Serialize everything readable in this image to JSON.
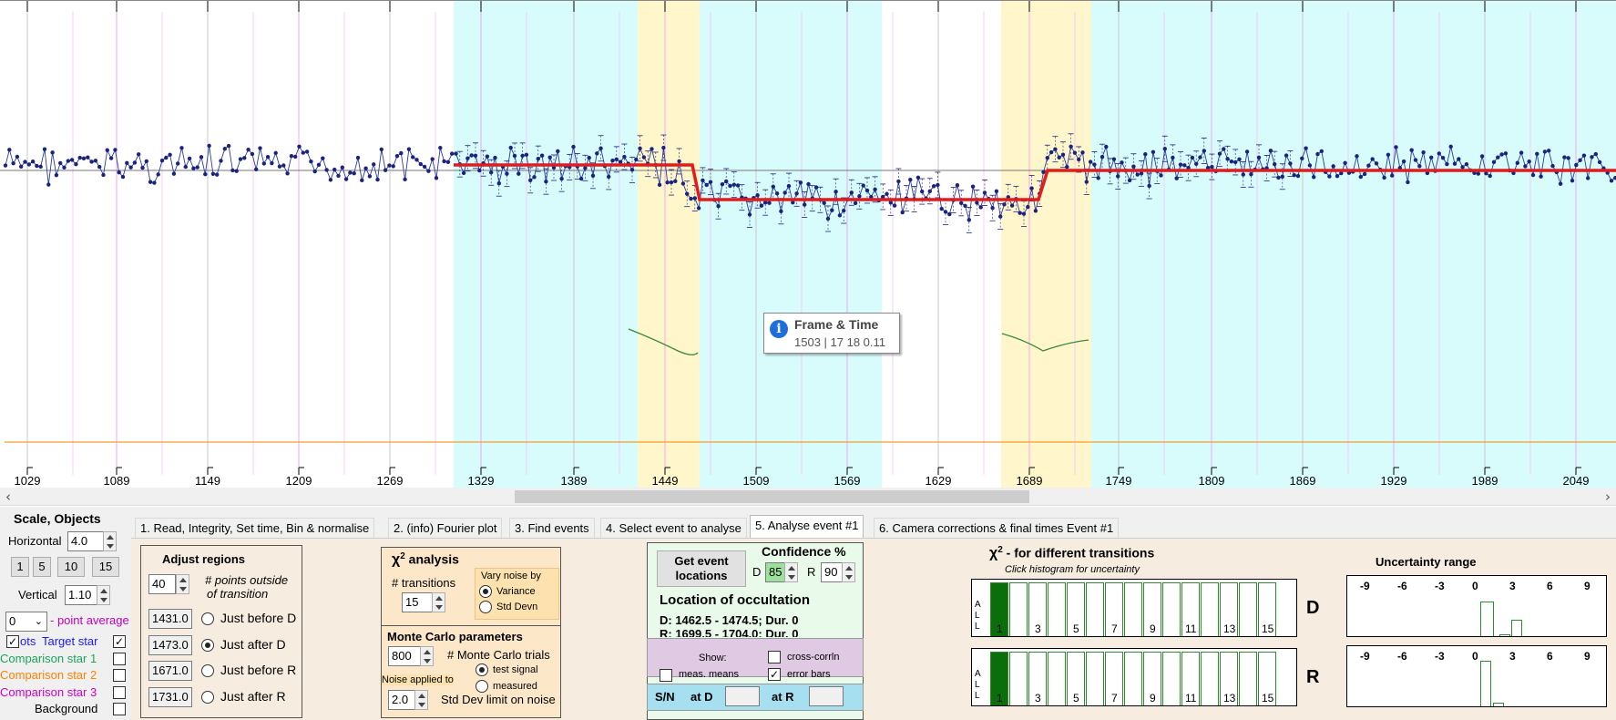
{
  "plot": {
    "x_ticks": [
      "1029",
      "1089",
      "1149",
      "1209",
      "1269",
      "1329",
      "1389",
      "1449",
      "1509",
      "1569",
      "1629",
      "1689",
      "1749",
      "1809",
      "1869",
      "1929",
      "1989",
      "2049"
    ],
    "colors": {
      "shade_blue": "#d8fbfc",
      "shade_yellow": "#fff6cc",
      "data": "#1a237e",
      "model": "#e41b1b",
      "guide": "#3a8a3a",
      "baseline": "#f0a030"
    },
    "tooltip": {
      "title": "Frame & Time",
      "text": "1503 | 17 18  0.11"
    }
  },
  "scale_panel": {
    "title": "Scale,  Objects",
    "horizontal_label": "Horizontal",
    "horizontal_value": "4.0",
    "buttons": [
      "1",
      "5",
      "10",
      "15"
    ],
    "vertical_label": "Vertical",
    "vertical_value": "1.10",
    "point_avg_value": "0",
    "point_avg_label": "- point average",
    "objects": [
      {
        "left": "ots",
        "label": "Target star",
        "color": "#1a1aff",
        "checked": true
      },
      {
        "left": "",
        "label": "Comparison star 1",
        "color": "#1aa35a",
        "checked": false
      },
      {
        "left": "",
        "label": "Comparison star 2",
        "color": "#ff8000",
        "checked": false
      },
      {
        "left": "",
        "label": "Comparison star 3",
        "color": "#cc00cc",
        "checked": false
      },
      {
        "left": "",
        "label": "Background",
        "color": "#000000",
        "checked": false
      }
    ]
  },
  "tabs": [
    "1.  Read, Integrity, Set time, Bin & normalise",
    "2. (info)  Fourier plot",
    "3. Find events",
    "4. Select event to analyse",
    "5. Analyse event #1",
    "6. Camera corrections & final times Event #1"
  ],
  "adjust_regions": {
    "title": "Adjust regions",
    "points_value": "40",
    "points_label_1": "# points outside",
    "points_label_2": "of transition",
    "rows": [
      {
        "value": "1431.0",
        "label": "Just before D",
        "selected": false
      },
      {
        "value": "1473.0",
        "label": "Just after D",
        "selected": true
      },
      {
        "value": "1671.0",
        "label": "Just before R",
        "selected": false
      },
      {
        "value": "1731.0",
        "label": "Just after R",
        "selected": false
      }
    ]
  },
  "chi2": {
    "title": "χ",
    "sup": "2",
    "title_rest": " analysis",
    "transitions_label": "# transitions",
    "transitions_value": "15",
    "vary_label": "Vary noise by",
    "vary_options": [
      {
        "label": "Variance",
        "selected": true
      },
      {
        "label": "Std Devn",
        "selected": false
      }
    ]
  },
  "monte_carlo": {
    "title": "Monte Carlo parameters",
    "trials_value": "800",
    "trials_label": "# Monte Carlo trials",
    "noise_label": "Noise applied to",
    "noise_options": [
      {
        "label": "test signal",
        "selected": true
      },
      {
        "label": "measured",
        "selected": false
      }
    ],
    "std_value": "2.0",
    "std_label": "Std Dev limit on noise"
  },
  "event": {
    "get_button_1": "Get event",
    "get_button_2": "locations",
    "confidence_title": "Confidence %",
    "d_label": "D",
    "d_value": "85",
    "r_label": "R",
    "r_value": "90",
    "location_title": "Location of occultation",
    "d_line": "D: 1462.5 - 1474.5; Dur. 0",
    "r_line": "R: 1699.5 - 1704.0; Dur. 0",
    "show_label": "Show:",
    "meas_means": "meas. means",
    "cross_corrln": "cross-corrln",
    "error_bars": "error bars",
    "sn_label": "S/N",
    "at_d": "at D",
    "at_r": "at R"
  },
  "chi2_hist": {
    "title_chi": "χ",
    "title_sup": "2",
    "title_rest": " - for different transitions",
    "subtitle": "Click histogram for uncertainty",
    "all_letters": "A\nL\nL",
    "d_label": "D",
    "r_label": "R",
    "bar_labels": [
      "1",
      "3",
      "5",
      "7",
      "9",
      "11",
      "13",
      "15"
    ]
  },
  "uncertainty": {
    "title": "Uncertainty range",
    "ticks": [
      "-9",
      "-6",
      "-3",
      "0",
      "3",
      "6",
      "9"
    ]
  }
}
